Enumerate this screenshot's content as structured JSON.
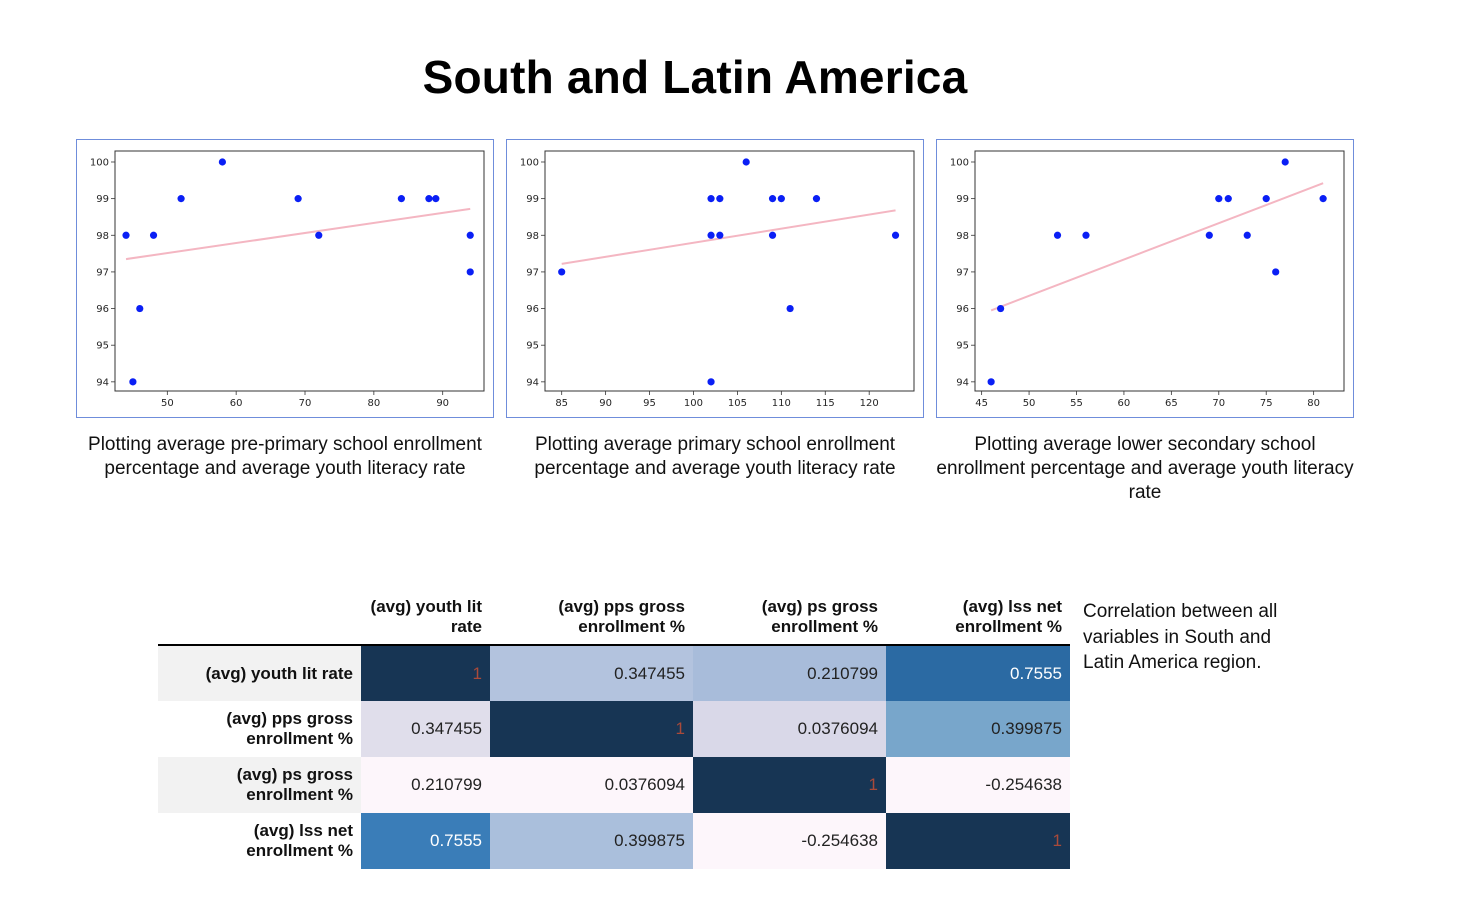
{
  "title": "South and Latin America",
  "chart_data": [
    {
      "type": "scatter",
      "caption": "Plotting average pre-primary school enrollment percentage and average youth literacy rate",
      "xlim": [
        42.4,
        96.0
      ],
      "ylim": [
        93.75,
        100.3
      ],
      "xticks": [
        50,
        60,
        70,
        80,
        90
      ],
      "yticks": [
        94,
        95,
        96,
        97,
        98,
        99,
        100
      ],
      "points": [
        [
          44,
          98
        ],
        [
          45,
          94
        ],
        [
          46,
          96
        ],
        [
          48,
          98
        ],
        [
          52,
          99
        ],
        [
          58,
          100
        ],
        [
          69,
          99
        ],
        [
          72,
          98
        ],
        [
          84,
          99
        ],
        [
          88,
          99
        ],
        [
          89,
          99
        ],
        [
          94,
          98
        ],
        [
          94,
          97
        ]
      ],
      "trendline": [
        [
          44,
          97.35
        ],
        [
          94,
          98.72
        ]
      ],
      "point_color": "#0a1ff5",
      "line_color": "#f4b6c2"
    },
    {
      "type": "scatter",
      "caption": "Plotting average primary school enrollment percentage and average youth literacy rate",
      "xlim": [
        83.1,
        125.1
      ],
      "ylim": [
        93.75,
        100.3
      ],
      "xticks": [
        85,
        90,
        95,
        100,
        105,
        110,
        115,
        120
      ],
      "yticks": [
        94,
        95,
        96,
        97,
        98,
        99,
        100
      ],
      "points": [
        [
          85,
          97
        ],
        [
          102,
          94
        ],
        [
          102,
          98
        ],
        [
          102,
          99
        ],
        [
          103,
          98
        ],
        [
          103,
          99
        ],
        [
          106,
          100
        ],
        [
          109,
          99
        ],
        [
          109,
          98
        ],
        [
          110,
          99
        ],
        [
          111,
          96
        ],
        [
          114,
          99
        ],
        [
          123,
          98
        ]
      ],
      "trendline": [
        [
          85,
          97.22
        ],
        [
          123,
          98.68
        ]
      ],
      "point_color": "#0a1ff5",
      "line_color": "#f4b6c2"
    },
    {
      "type": "scatter",
      "caption": "Plotting average lower secondary school enrollment percentage and average youth literacy rate",
      "xlim": [
        44.3,
        83.2
      ],
      "ylim": [
        93.75,
        100.3
      ],
      "xticks": [
        45,
        50,
        55,
        60,
        65,
        70,
        75,
        80
      ],
      "yticks": [
        94,
        95,
        96,
        97,
        98,
        99,
        100
      ],
      "points": [
        [
          46,
          94
        ],
        [
          47,
          96
        ],
        [
          53,
          98
        ],
        [
          56,
          98
        ],
        [
          69,
          98
        ],
        [
          70,
          99
        ],
        [
          71,
          99
        ],
        [
          73,
          98
        ],
        [
          75,
          99
        ],
        [
          76,
          97
        ],
        [
          77,
          100
        ],
        [
          81,
          99
        ]
      ],
      "trendline": [
        [
          46,
          95.95
        ],
        [
          81,
          99.42
        ]
      ],
      "point_color": "#0a1ff5",
      "line_color": "#f4b6c2"
    },
    {
      "type": "heatmap",
      "columns": [
        "(avg) youth lit rate",
        "(avg) pps gross enrollment %",
        "(avg) ps gross enrollment %",
        "(avg) lss net enrollment %"
      ],
      "rows": [
        {
          "label": "(avg) youth lit rate",
          "cells": [
            {
              "text": "1",
              "value": 1,
              "color": "#173554"
            },
            {
              "text": "0.347455",
              "value": 0.347455,
              "color": "#b3c3de"
            },
            {
              "text": "0.210799",
              "value": 0.210799,
              "color": "#a8bcda"
            },
            {
              "text": "0.7555",
              "value": 0.7555,
              "color": "#2b6aa3"
            }
          ]
        },
        {
          "label": "(avg) pps gross enrollment %",
          "cells": [
            {
              "text": "0.347455",
              "value": 0.347455,
              "color": "#e0deeb"
            },
            {
              "text": "1",
              "value": 1,
              "color": "#173554"
            },
            {
              "text": "0.0376094",
              "value": 0.0376094,
              "color": "#d9d8e8"
            },
            {
              "text": "0.399875",
              "value": 0.399875,
              "color": "#78a6cb"
            }
          ]
        },
        {
          "label": "(avg) ps gross enrollment %",
          "cells": [
            {
              "text": "0.210799",
              "value": 0.210799,
              "color": "#fdf6fb"
            },
            {
              "text": "0.0376094",
              "value": 0.0376094,
              "color": "#fdf6fb"
            },
            {
              "text": "1",
              "value": 1,
              "color": "#173554"
            },
            {
              "text": "-0.254638",
              "value": -0.254638,
              "color": "#fdf6fb"
            }
          ]
        },
        {
          "label": "(avg) lss net enrollment %",
          "cells": [
            {
              "text": "0.7555",
              "value": 0.7555,
              "color": "#3a7db8"
            },
            {
              "text": "0.399875",
              "value": 0.399875,
              "color": "#aabfdc"
            },
            {
              "text": "-0.254638",
              "value": -0.254638,
              "color": "#fdf6fb"
            },
            {
              "text": "1",
              "value": 1,
              "color": "#173554"
            }
          ]
        }
      ],
      "note": "Correlation between all variables in South and Latin America region."
    }
  ]
}
